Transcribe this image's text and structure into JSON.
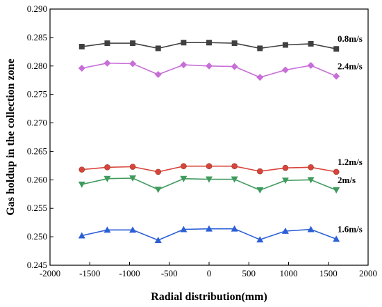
{
  "chart_data": {
    "type": "line",
    "xlabel": "Radial distribution(mm)",
    "ylabel": "Gas holdup in the collection zone",
    "xlim": [
      -2000,
      2000
    ],
    "ylim": [
      0.245,
      0.29
    ],
    "xticks": [
      "-2000",
      "-1500",
      "-1000",
      "-500",
      "0",
      "500",
      "1000",
      "1500",
      "2000"
    ],
    "yticks": [
      "0.245",
      "0.250",
      "0.255",
      "0.260",
      "0.265",
      "0.270",
      "0.275",
      "0.280",
      "0.285",
      "0.290"
    ],
    "grid": false,
    "x": [
      -1600,
      -1280,
      -960,
      -640,
      -320,
      0,
      320,
      640,
      960,
      1280,
      1600
    ],
    "series": [
      {
        "name": "0.8m/s",
        "marker": "square",
        "color": "#404040",
        "values": [
          0.2834,
          0.284,
          0.284,
          0.2831,
          0.2841,
          0.2841,
          0.284,
          0.2831,
          0.2837,
          0.2839,
          0.283
        ]
      },
      {
        "name": "2.4m/s",
        "marker": "diamond",
        "color": "#c86ed8",
        "values": [
          0.2796,
          0.2805,
          0.2804,
          0.2785,
          0.2802,
          0.28,
          0.2799,
          0.278,
          0.2793,
          0.2801,
          0.2782
        ]
      },
      {
        "name": "1.2m/s",
        "marker": "circle",
        "color": "#d9443a",
        "values": [
          0.2618,
          0.2622,
          0.2623,
          0.2614,
          0.2624,
          0.2624,
          0.2624,
          0.2615,
          0.2621,
          0.2622,
          0.2614
        ]
      },
      {
        "name": "2m/s",
        "marker": "triangle-down",
        "color": "#3f9a5e",
        "values": [
          0.2592,
          0.2602,
          0.2603,
          0.2583,
          0.2602,
          0.2601,
          0.2601,
          0.2582,
          0.2599,
          0.26,
          0.2582
        ]
      },
      {
        "name": "1.6m/s",
        "marker": "triangle-up",
        "color": "#2c5fd6",
        "values": [
          0.2502,
          0.2512,
          0.2512,
          0.2494,
          0.2513,
          0.2514,
          0.2514,
          0.2495,
          0.251,
          0.2513,
          0.2496
        ]
      }
    ]
  }
}
